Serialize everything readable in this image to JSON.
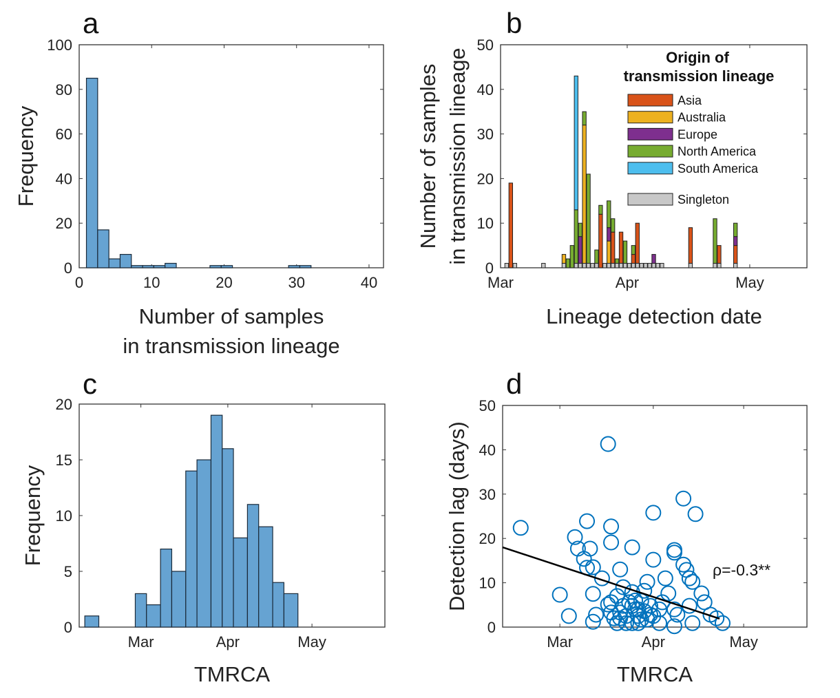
{
  "chart_data": [
    {
      "panel": "a",
      "type": "bar",
      "subtype": "histogram",
      "xlabel": [
        "Number of samples",
        "in transmission lineage"
      ],
      "ylabel": "Frequency",
      "xlim": [
        0,
        42
      ],
      "ylim": [
        0,
        100
      ],
      "xticks": [
        0,
        10,
        20,
        30,
        40
      ],
      "yticks": [
        0,
        20,
        40,
        60,
        80,
        100
      ],
      "bin_edges": [
        1,
        2.55,
        4.1,
        5.65,
        7.2,
        8.75,
        10.3,
        11.85,
        13.4,
        14.95,
        16.5,
        18.05,
        19.6,
        21.15,
        22.7,
        24.25,
        25.8,
        27.35,
        28.9,
        30.45,
        32
      ],
      "values": [
        85,
        17,
        4,
        6,
        1,
        1,
        1,
        2,
        0,
        0,
        0,
        1,
        1,
        0,
        0,
        0,
        0,
        0,
        1,
        1
      ],
      "color": "#66A3D2"
    },
    {
      "panel": "b",
      "type": "bar",
      "subtype": "stacked",
      "xlabel": "Lineage detection date",
      "ylabel": [
        "Number of samples",
        "in transmission lineage"
      ],
      "xlim": [
        "2020-03-01",
        "2020-05-15"
      ],
      "ylim": [
        0,
        50
      ],
      "xticks": [
        {
          "date": "2020-03-01",
          "label": "Mar"
        },
        {
          "date": "2020-04-01",
          "label": "Apr"
        },
        {
          "date": "2020-05-01",
          "label": "May"
        }
      ],
      "yticks": [
        0,
        10,
        20,
        30,
        40,
        50
      ],
      "legend": {
        "title": [
          "Origin of",
          "transmission lineage"
        ],
        "placement": "top-right"
      },
      "series": [
        {
          "key": "singleton",
          "name": "Singleton",
          "color": "#C8C8C8"
        },
        {
          "key": "asia",
          "name": "Asia",
          "color": "#D95319"
        },
        {
          "key": "australia",
          "name": "Australia",
          "color": "#EDB120"
        },
        {
          "key": "europe",
          "name": "Europe",
          "color": "#7E2F8E"
        },
        {
          "key": "north_america",
          "name": "North America",
          "color": "#77AC30"
        },
        {
          "key": "south_america",
          "name": "South America",
          "color": "#4DBEEE"
        }
      ],
      "bars": [
        {
          "date": "2020-03-02",
          "singleton": 1
        },
        {
          "date": "2020-03-03",
          "asia": 19
        },
        {
          "date": "2020-03-04",
          "singleton": 1
        },
        {
          "date": "2020-03-11",
          "singleton": 1
        },
        {
          "date": "2020-03-16",
          "singleton": 1,
          "australia": 2
        },
        {
          "date": "2020-03-17",
          "north_america": 2
        },
        {
          "date": "2020-03-18",
          "north_america": 5
        },
        {
          "date": "2020-03-19",
          "singleton": 1,
          "north_america": 12,
          "south_america": 30
        },
        {
          "date": "2020-03-20",
          "singleton": 1,
          "europe": 6,
          "north_america": 3
        },
        {
          "date": "2020-03-21",
          "singleton": 1,
          "australia": 31,
          "north_america": 3
        },
        {
          "date": "2020-03-22",
          "singleton": 1,
          "north_america": 20
        },
        {
          "date": "2020-03-23",
          "singleton": 1
        },
        {
          "date": "2020-03-24",
          "singleton": 1,
          "north_america": 3
        },
        {
          "date": "2020-03-25",
          "asia": 12,
          "north_america": 2
        },
        {
          "date": "2020-03-26",
          "singleton": 1
        },
        {
          "date": "2020-03-27",
          "singleton": 1,
          "australia": 5,
          "europe": 3,
          "north_america": 6
        },
        {
          "date": "2020-03-28",
          "singleton": 1,
          "asia": 7,
          "north_america": 3
        },
        {
          "date": "2020-03-29",
          "singleton": 1,
          "north_america": 1
        },
        {
          "date": "2020-03-30",
          "singleton": 1,
          "asia": 7
        },
        {
          "date": "2020-03-31",
          "singleton": 1,
          "north_america": 5
        },
        {
          "date": "2020-04-01",
          "singleton": 1
        },
        {
          "date": "2020-04-02",
          "singleton": 1,
          "asia": 2,
          "north_america": 2
        },
        {
          "date": "2020-04-03",
          "singleton": 1,
          "asia": 9
        },
        {
          "date": "2020-04-04",
          "singleton": 1
        },
        {
          "date": "2020-04-05",
          "singleton": 1
        },
        {
          "date": "2020-04-06",
          "singleton": 1
        },
        {
          "date": "2020-04-07",
          "singleton": 1,
          "europe": 2
        },
        {
          "date": "2020-04-08",
          "singleton": 1
        },
        {
          "date": "2020-04-09",
          "singleton": 1
        },
        {
          "date": "2020-04-16",
          "singleton": 1,
          "asia": 8
        },
        {
          "date": "2020-04-22",
          "singleton": 1,
          "north_america": 10
        },
        {
          "date": "2020-04-23",
          "singleton": 1,
          "asia": 4
        },
        {
          "date": "2020-04-27",
          "singleton": 1,
          "asia": 4,
          "europe": 2,
          "north_america": 3
        }
      ]
    },
    {
      "panel": "c",
      "type": "bar",
      "subtype": "histogram",
      "xlabel": "TMRCA",
      "ylabel": "Frequency",
      "xlim": [
        "2020-02-08",
        "2020-05-27"
      ],
      "ylim": [
        0,
        20
      ],
      "xticks": [
        {
          "date": "2020-03-01",
          "label": "Mar"
        },
        {
          "date": "2020-04-01",
          "label": "Apr"
        },
        {
          "date": "2020-05-01",
          "label": "May"
        }
      ],
      "yticks": [
        0,
        5,
        10,
        15,
        20
      ],
      "bin_edges": [
        "2020-02-10",
        "2020-02-15",
        "2020-02-19",
        "2020-02-24",
        "2020-02-28",
        "2020-03-03",
        "2020-03-08",
        "2020-03-12",
        "2020-03-17",
        "2020-03-21",
        "2020-03-26",
        "2020-03-30",
        "2020-04-03",
        "2020-04-08",
        "2020-04-12",
        "2020-04-17",
        "2020-04-21",
        "2020-04-26"
      ],
      "values": [
        1,
        0,
        0,
        0,
        3,
        2,
        7,
        5,
        14,
        15,
        19,
        16,
        8,
        11,
        9,
        4,
        3
      ],
      "color": "#66A3D2"
    },
    {
      "panel": "d",
      "type": "scatter",
      "xlabel": "TMRCA",
      "ylabel": "Detection lag (days)",
      "xlim": [
        "2020-02-11",
        "2020-05-22"
      ],
      "ylim": [
        0,
        50
      ],
      "xticks": [
        {
          "date": "2020-03-01",
          "label": "Mar"
        },
        {
          "date": "2020-04-01",
          "label": "Apr"
        },
        {
          "date": "2020-05-01",
          "label": "May"
        }
      ],
      "yticks": [
        0,
        10,
        20,
        30,
        40,
        50
      ],
      "color": "#0072BD",
      "annotation": "ρ=-0.3**",
      "trend_line": [
        {
          "date": "2020-02-11",
          "lag": 18
        },
        {
          "date": "2020-04-23",
          "lag": 1.9
        }
      ],
      "points": [
        [
          "2020-02-17",
          22.4
        ],
        [
          "2020-03-17",
          41.3
        ],
        [
          "2020-03-01",
          7.3
        ],
        [
          "2020-03-04",
          2.5
        ],
        [
          "2020-03-06",
          20.3
        ],
        [
          "2020-03-07",
          17.7
        ],
        [
          "2020-03-10",
          23.9
        ],
        [
          "2020-03-09",
          15.4
        ],
        [
          "2020-03-10",
          13.4
        ],
        [
          "2020-03-11",
          17.7
        ],
        [
          "2020-03-12",
          13.5
        ],
        [
          "2020-03-18",
          22.7
        ],
        [
          "2020-03-18",
          19.1
        ],
        [
          "2020-03-12",
          7.5
        ],
        [
          "2020-03-15",
          11
        ],
        [
          "2020-03-13",
          2.8
        ],
        [
          "2020-03-25",
          18
        ],
        [
          "2020-04-01",
          25.8
        ],
        [
          "2020-04-01",
          15.2
        ],
        [
          "2020-04-11",
          29
        ],
        [
          "2020-04-15",
          25.5
        ],
        [
          "2020-04-08",
          17.4
        ],
        [
          "2020-04-08",
          16.8
        ],
        [
          "2020-04-11",
          14.1
        ],
        [
          "2020-04-12",
          12.9
        ],
        [
          "2020-04-13",
          11
        ],
        [
          "2020-04-14",
          10.2
        ],
        [
          "2020-04-17",
          7.6
        ],
        [
          "2020-04-18",
          5.6
        ],
        [
          "2020-04-20",
          2.8
        ],
        [
          "2020-04-22",
          2
        ],
        [
          "2020-04-24",
          0.9
        ],
        [
          "2020-03-17",
          5.1
        ],
        [
          "2020-03-20",
          7
        ],
        [
          "2020-03-21",
          13
        ],
        [
          "2020-03-22",
          9
        ],
        [
          "2020-03-25",
          7.9
        ],
        [
          "2020-03-30",
          10.2
        ],
        [
          "2020-03-29",
          8.2
        ],
        [
          "2020-03-28",
          5.9
        ],
        [
          "2020-03-31",
          2.8
        ],
        [
          "2020-04-05",
          11
        ],
        [
          "2020-04-06",
          7.6
        ],
        [
          "2020-04-04",
          5.6
        ],
        [
          "2020-04-08",
          4
        ],
        [
          "2020-04-09",
          2.8
        ],
        [
          "2020-04-13",
          4.8
        ],
        [
          "2020-04-14",
          0.9
        ],
        [
          "2020-03-12",
          1.2
        ],
        [
          "2020-04-08",
          0.2
        ],
        [
          "2020-04-03",
          0.9
        ],
        [
          "2020-03-19",
          2
        ],
        [
          "2020-03-21",
          3.3
        ],
        [
          "2020-03-22",
          4.8
        ],
        [
          "2020-03-23",
          2.5
        ],
        [
          "2020-03-25",
          0.9
        ],
        [
          "2020-03-26",
          4
        ],
        [
          "2020-03-27",
          2.5
        ],
        [
          "2020-03-28",
          1.7
        ],
        [
          "2020-03-29",
          3.6
        ],
        [
          "2020-03-27",
          4
        ],
        [
          "2020-03-30",
          1.7
        ],
        [
          "2020-03-31",
          4.8
        ],
        [
          "2020-03-25",
          4.8
        ],
        [
          "2020-03-24",
          5.6
        ],
        [
          "2020-03-26",
          6
        ],
        [
          "2020-03-23",
          0.9
        ],
        [
          "2020-03-20",
          0.9
        ],
        [
          "2020-03-18",
          3.3
        ],
        [
          "2020-04-01",
          2.5
        ],
        [
          "2020-04-03",
          4
        ],
        [
          "2020-03-27",
          0.9
        ],
        [
          "2020-03-21",
          2
        ],
        [
          "2020-03-18",
          5.6
        ]
      ]
    }
  ]
}
